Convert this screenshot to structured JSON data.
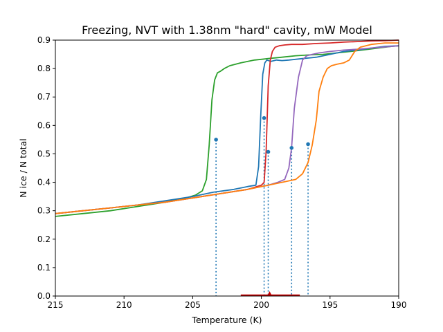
{
  "chart_data": {
    "type": "line",
    "title": "Freezing, NVT with 1.38nm \"hard\" cavity, mW Model",
    "xlabel": "Temperature (K)",
    "ylabel": "N ice / N total",
    "xlim": [
      215,
      190
    ],
    "ylim": [
      0.0,
      0.9
    ],
    "x_ticks": [
      "215",
      "210",
      "205",
      "200",
      "195",
      "190"
    ],
    "y_ticks": [
      "0.0",
      "0.1",
      "0.2",
      "0.3",
      "0.4",
      "0.5",
      "0.6",
      "0.7",
      "0.8",
      "0.9"
    ],
    "grid": false,
    "legend": "none",
    "series": [
      {
        "color": "#2ca02c",
        "x": [
          215,
          213,
          211,
          209,
          207,
          205.5,
          204.8,
          204.3,
          204.0,
          203.8,
          203.6,
          203.4,
          203.2,
          203.0,
          202.7,
          202.3,
          201.5,
          200.5,
          199.5,
          198.5,
          197.5,
          196.5,
          195.5,
          194.5,
          193.5,
          192.5,
          191.5,
          190.5,
          190
        ],
        "y": [
          0.28,
          0.29,
          0.3,
          0.315,
          0.33,
          0.345,
          0.355,
          0.37,
          0.41,
          0.53,
          0.69,
          0.76,
          0.785,
          0.79,
          0.8,
          0.81,
          0.82,
          0.83,
          0.835,
          0.84,
          0.845,
          0.848,
          0.85,
          0.855,
          0.86,
          0.866,
          0.872,
          0.878,
          0.88
        ]
      },
      {
        "color": "#1f77b4",
        "x": [
          215,
          213,
          211,
          209,
          207,
          205,
          203.5,
          202,
          201,
          200.4,
          200.2,
          200.05,
          199.9,
          199.75,
          199.6,
          199.3,
          198.9,
          198.5,
          198,
          197,
          196,
          195,
          194,
          193,
          192,
          191,
          190
        ],
        "y": [
          0.29,
          0.3,
          0.31,
          0.32,
          0.335,
          0.35,
          0.365,
          0.375,
          0.385,
          0.39,
          0.455,
          0.63,
          0.78,
          0.82,
          0.83,
          0.825,
          0.83,
          0.828,
          0.83,
          0.835,
          0.84,
          0.85,
          0.86,
          0.865,
          0.872,
          0.878,
          0.88
        ]
      },
      {
        "color": "#d62728",
        "x": [
          215,
          213,
          211,
          209,
          207,
          205,
          203,
          201,
          200.0,
          199.8,
          199.65,
          199.5,
          199.35,
          199.2,
          199.0,
          198.7,
          198.3,
          197.8,
          197,
          196,
          195,
          194,
          193,
          192,
          191,
          190
        ],
        "y": [
          0.29,
          0.3,
          0.31,
          0.32,
          0.33,
          0.345,
          0.36,
          0.375,
          0.39,
          0.4,
          0.51,
          0.74,
          0.83,
          0.86,
          0.875,
          0.88,
          0.883,
          0.885,
          0.885,
          0.888,
          0.89,
          0.893,
          0.895,
          0.897,
          0.898,
          0.9
        ]
      },
      {
        "color": "#9467bd",
        "x": [
          215,
          213,
          211,
          209,
          207,
          205,
          203,
          201,
          199.5,
          198.8,
          198.3,
          198.0,
          197.8,
          197.6,
          197.3,
          197.0,
          196.7,
          196.3,
          195.8,
          195.0,
          194.0,
          193.0,
          192.0,
          191.0,
          190
        ],
        "y": [
          0.29,
          0.3,
          0.31,
          0.32,
          0.33,
          0.345,
          0.36,
          0.375,
          0.39,
          0.4,
          0.41,
          0.45,
          0.52,
          0.66,
          0.77,
          0.83,
          0.845,
          0.85,
          0.855,
          0.86,
          0.865,
          0.868,
          0.872,
          0.876,
          0.88
        ]
      },
      {
        "color": "#ff7f0e",
        "x": [
          215,
          213,
          211,
          209,
          207,
          205,
          203,
          201,
          199.5,
          198.5,
          197.5,
          197.0,
          196.6,
          196.3,
          196.0,
          195.8,
          195.5,
          195.2,
          194.9,
          194.5,
          194.0,
          193.6,
          193.2,
          192.8,
          192.0,
          191.0,
          190
        ],
        "y": [
          0.29,
          0.3,
          0.31,
          0.32,
          0.33,
          0.345,
          0.36,
          0.375,
          0.39,
          0.4,
          0.41,
          0.43,
          0.47,
          0.53,
          0.62,
          0.72,
          0.77,
          0.8,
          0.81,
          0.815,
          0.82,
          0.83,
          0.86,
          0.875,
          0.885,
          0.89,
          0.89
        ]
      }
    ],
    "markers": {
      "color": "#1f77b4",
      "points": [
        {
          "x": 203.3,
          "y": 0.55
        },
        {
          "x": 199.8,
          "y": 0.626
        },
        {
          "x": 199.5,
          "y": 0.507
        },
        {
          "x": 197.8,
          "y": 0.521
        },
        {
          "x": 196.6,
          "y": 0.534
        }
      ]
    },
    "bottom_bar": {
      "color": "#c00000",
      "x_start": 201.5,
      "x_end": 197.2,
      "peak_x": 199.4
    }
  }
}
